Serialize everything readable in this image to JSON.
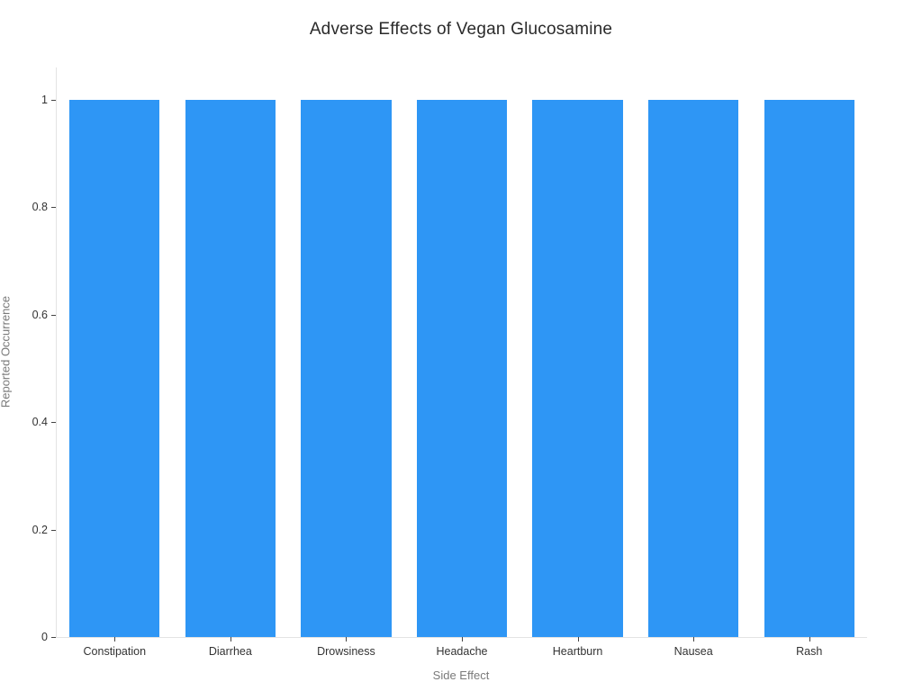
{
  "chart_data": {
    "type": "bar",
    "title": "Adverse Effects of Vegan Glucosamine",
    "xlabel": "Side Effect",
    "ylabel": "Reported Occurrence",
    "categories": [
      "Constipation",
      "Diarrhea",
      "Drowsiness",
      "Headache",
      "Heartburn",
      "Nausea",
      "Rash"
    ],
    "values": [
      1,
      1,
      1,
      1,
      1,
      1,
      1
    ],
    "ylim": [
      0,
      1.06
    ],
    "yticks": [
      0,
      0.2,
      0.4,
      0.6,
      0.8,
      1
    ],
    "ytick_labels": [
      "0",
      "0.2",
      "0.4",
      "0.6",
      "0.8",
      "1"
    ],
    "grid": false,
    "legend_position": "none",
    "bar_color": "#2e96f5",
    "colors": {
      "title": "#2a2a2a",
      "tick_label": "#333333",
      "axis_title": "#7a7a7a",
      "axis_line": "#e3e3e3"
    }
  }
}
